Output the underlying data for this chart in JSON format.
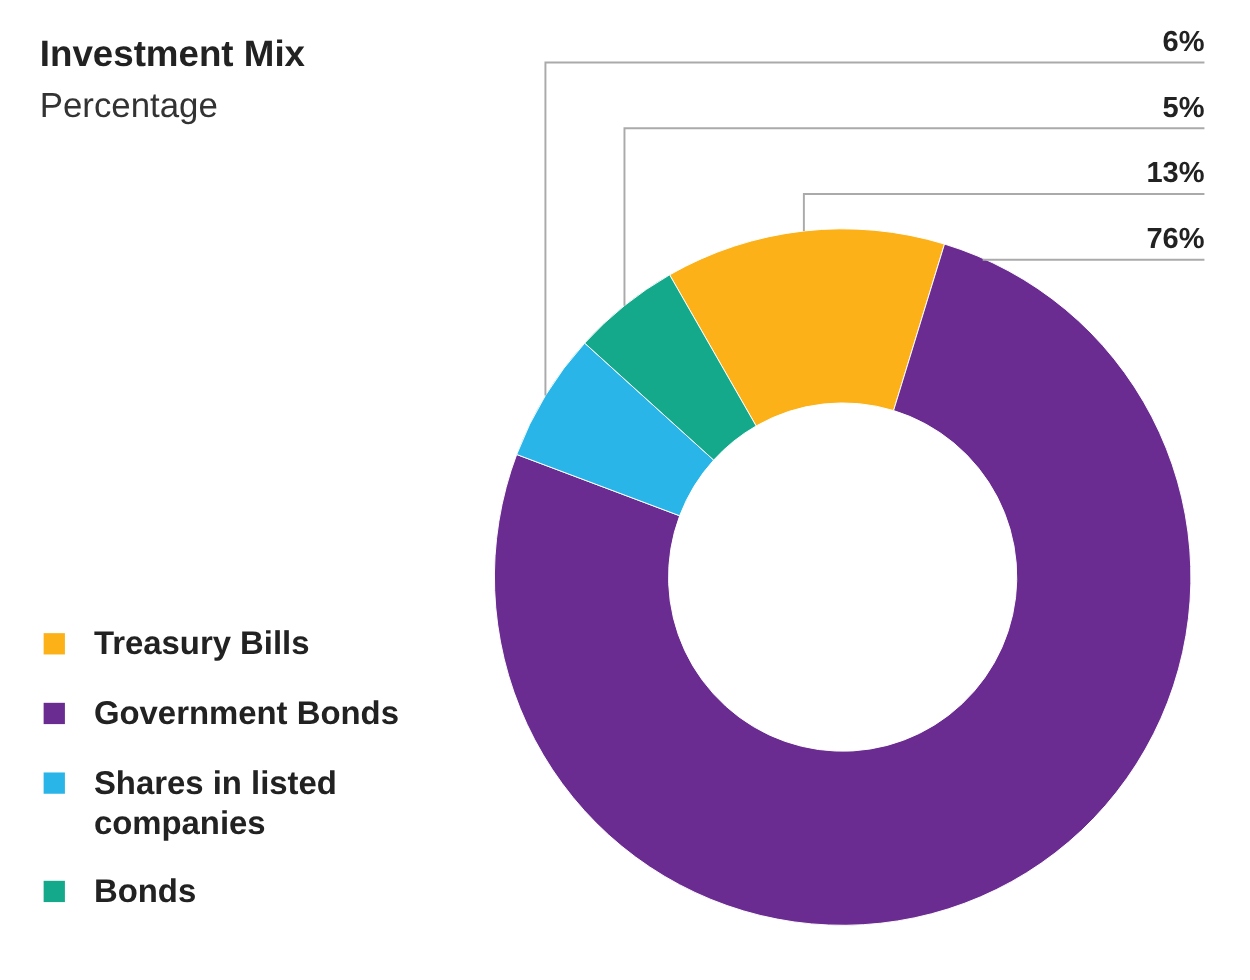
{
  "chart_data": {
    "type": "donut",
    "title": "Investment Mix",
    "subtitle": "Percentage",
    "categories": [
      "Treasury Bills",
      "Government Bonds",
      "Shares in listed companies",
      "Bonds"
    ],
    "values": [
      13,
      76,
      6,
      5
    ],
    "colors": [
      "#fbb117",
      "#6a2c91",
      "#29b5e8",
      "#14a98b"
    ],
    "value_labels": [
      "13%",
      "76%",
      "6%",
      "5%"
    ],
    "legend": "bottom left"
  }
}
